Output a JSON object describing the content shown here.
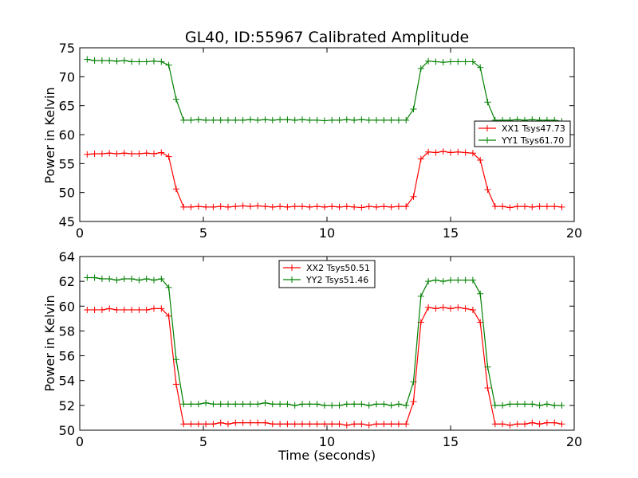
{
  "figure_title": "GL40, ID:55967 Calibrated Amplitude",
  "chart_data": [
    {
      "type": "line",
      "xlabel": "",
      "ylabel": "Power in Kelvin",
      "xlim": [
        0,
        20
      ],
      "ylim": [
        45,
        75
      ],
      "xticks": [
        0,
        5,
        10,
        15,
        20
      ],
      "yticks": [
        45,
        50,
        55,
        60,
        65,
        70,
        75
      ],
      "grid": false,
      "legend_position": "right",
      "x": [
        0.3,
        0.6,
        0.9,
        1.2,
        1.5,
        1.8,
        2.1,
        2.4,
        2.7,
        3.0,
        3.3,
        3.6,
        3.9,
        4.2,
        4.5,
        4.8,
        5.1,
        5.4,
        5.7,
        6.0,
        6.3,
        6.6,
        6.9,
        7.2,
        7.5,
        7.8,
        8.1,
        8.4,
        8.7,
        9.0,
        9.3,
        9.6,
        9.9,
        10.2,
        10.5,
        10.8,
        11.1,
        11.4,
        11.7,
        12.0,
        12.3,
        12.6,
        12.9,
        13.2,
        13.5,
        13.8,
        14.1,
        14.4,
        14.7,
        15.0,
        15.3,
        15.6,
        15.9,
        16.2,
        16.5,
        16.8,
        17.1,
        17.4,
        17.7,
        18.0,
        18.3,
        18.6,
        18.9,
        19.2,
        19.5
      ],
      "series": [
        {
          "name": "XX1 Tsys47.73",
          "color": "#ff0000",
          "values": [
            56.6,
            56.7,
            56.7,
            56.8,
            56.7,
            56.8,
            56.7,
            56.7,
            56.8,
            56.7,
            56.9,
            56.2,
            50.6,
            47.5,
            47.5,
            47.6,
            47.5,
            47.5,
            47.6,
            47.5,
            47.6,
            47.7,
            47.6,
            47.7,
            47.6,
            47.5,
            47.6,
            47.5,
            47.6,
            47.6,
            47.5,
            47.6,
            47.5,
            47.6,
            47.5,
            47.6,
            47.5,
            47.4,
            47.6,
            47.5,
            47.6,
            47.5,
            47.6,
            47.6,
            49.3,
            55.8,
            57.0,
            56.9,
            57.1,
            56.9,
            57.0,
            56.9,
            56.8,
            55.6,
            50.5,
            47.6,
            47.6,
            47.4,
            47.6,
            47.6,
            47.5,
            47.6,
            47.6,
            47.6,
            47.5
          ]
        },
        {
          "name": "YY1 Tsys61.70",
          "color": "#008000",
          "values": [
            73.0,
            72.8,
            72.8,
            72.8,
            72.7,
            72.8,
            72.6,
            72.6,
            72.6,
            72.7,
            72.6,
            72.0,
            66.1,
            62.5,
            62.5,
            62.6,
            62.5,
            62.5,
            62.5,
            62.5,
            62.5,
            62.5,
            62.6,
            62.5,
            62.6,
            62.5,
            62.6,
            62.6,
            62.5,
            62.6,
            62.5,
            62.5,
            62.4,
            62.5,
            62.5,
            62.6,
            62.5,
            62.6,
            62.5,
            62.5,
            62.5,
            62.5,
            62.5,
            62.5,
            64.4,
            71.4,
            72.7,
            72.6,
            72.5,
            72.6,
            72.6,
            72.6,
            72.6,
            71.6,
            65.6,
            62.5,
            62.5,
            62.5,
            62.6,
            62.5,
            62.6,
            62.5,
            62.5,
            62.5,
            62.3
          ]
        }
      ]
    },
    {
      "type": "line",
      "xlabel": "Time (seconds)",
      "ylabel": "Power in Kelvin",
      "xlim": [
        0,
        20
      ],
      "ylim": [
        50,
        64
      ],
      "xticks": [
        0,
        5,
        10,
        15,
        20
      ],
      "yticks": [
        50,
        52,
        54,
        56,
        58,
        60,
        62,
        64
      ],
      "grid": false,
      "legend_position": "top-center",
      "x": [
        0.3,
        0.6,
        0.9,
        1.2,
        1.5,
        1.8,
        2.1,
        2.4,
        2.7,
        3.0,
        3.3,
        3.6,
        3.9,
        4.2,
        4.5,
        4.8,
        5.1,
        5.4,
        5.7,
        6.0,
        6.3,
        6.6,
        6.9,
        7.2,
        7.5,
        7.8,
        8.1,
        8.4,
        8.7,
        9.0,
        9.3,
        9.6,
        9.9,
        10.2,
        10.5,
        10.8,
        11.1,
        11.4,
        11.7,
        12.0,
        12.3,
        12.6,
        12.9,
        13.2,
        13.5,
        13.8,
        14.1,
        14.4,
        14.7,
        15.0,
        15.3,
        15.6,
        15.9,
        16.2,
        16.5,
        16.8,
        17.1,
        17.4,
        17.7,
        18.0,
        18.3,
        18.6,
        18.9,
        19.2,
        19.5
      ],
      "series": [
        {
          "name": "XX2 Tsys50.51",
          "color": "#ff0000",
          "values": [
            59.7,
            59.7,
            59.7,
            59.8,
            59.7,
            59.7,
            59.7,
            59.7,
            59.7,
            59.8,
            59.8,
            59.2,
            53.7,
            50.5,
            50.5,
            50.5,
            50.5,
            50.5,
            50.6,
            50.5,
            50.6,
            50.6,
            50.6,
            50.6,
            50.6,
            50.5,
            50.5,
            50.5,
            50.5,
            50.5,
            50.5,
            50.5,
            50.5,
            50.5,
            50.5,
            50.4,
            50.5,
            50.5,
            50.4,
            50.5,
            50.5,
            50.5,
            50.5,
            50.5,
            52.3,
            58.7,
            59.9,
            59.8,
            59.9,
            59.8,
            59.9,
            59.8,
            59.7,
            58.7,
            53.4,
            50.5,
            50.5,
            50.4,
            50.5,
            50.5,
            50.6,
            50.5,
            50.6,
            50.6,
            50.5
          ]
        },
        {
          "name": "YY2 Tsys51.46",
          "color": "#008000",
          "values": [
            62.3,
            62.3,
            62.2,
            62.2,
            62.1,
            62.2,
            62.2,
            62.1,
            62.2,
            62.1,
            62.2,
            61.5,
            55.7,
            52.1,
            52.1,
            52.1,
            52.2,
            52.1,
            52.1,
            52.1,
            52.1,
            52.1,
            52.1,
            52.1,
            52.2,
            52.1,
            52.1,
            52.1,
            52.0,
            52.1,
            52.1,
            52.1,
            52.0,
            52.0,
            52.0,
            52.1,
            52.1,
            52.1,
            52.0,
            52.1,
            52.1,
            52.0,
            52.1,
            52.0,
            53.9,
            60.8,
            62.0,
            62.1,
            62.0,
            62.1,
            62.1,
            62.1,
            62.1,
            61.0,
            55.1,
            52.0,
            52.0,
            52.1,
            52.1,
            52.1,
            52.1,
            52.0,
            52.1,
            52.0,
            52.0
          ]
        }
      ]
    }
  ]
}
